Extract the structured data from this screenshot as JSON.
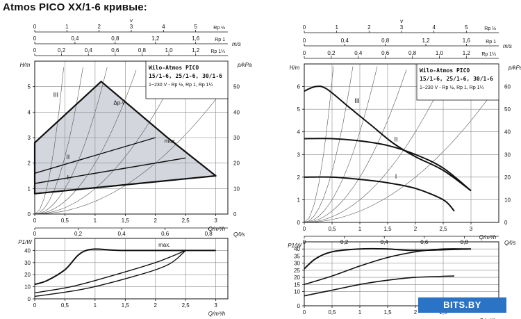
{
  "title": "Atmos PICO XX/1-6 кривые:",
  "watermark": "BITS.BY",
  "colors": {
    "line": "#111111",
    "grid": "#888888",
    "fill": "#d4d6de",
    "badge": "#2a73c5"
  },
  "chart_data": [
    {
      "id": "left-hq",
      "type": "area",
      "info_box": [
        "Wilo-Atmos PICO",
        "15/1-6, 25/1-6, 30/1-6",
        "1~230 V - Rp ½, Rp 1, Rp 1¼"
      ],
      "ylabel": "H/m",
      "ylabel_right": "p/kPa",
      "xlabel": "Q/m³/h",
      "xlabel2": "Q/l/s",
      "xlim": [
        0,
        3.2
      ],
      "ylim": [
        0,
        6
      ],
      "ylim_right": [
        0,
        60
      ],
      "y_ticks": [
        0,
        1,
        2,
        3,
        4,
        5
      ],
      "y_right_ticks": [
        0,
        10,
        20,
        30,
        40,
        50
      ],
      "x_ticks": [
        0,
        0.5,
        1,
        1.5,
        2,
        2.5,
        3
      ],
      "x2_ticks": [
        0,
        0.2,
        0.4,
        0.6,
        0.8
      ],
      "top_scales": [
        {
          "label": "v",
          "unit": "",
          "factor": 1.0,
          "ticks": [
            "0",
            "1",
            "2",
            "3",
            "4",
            "5"
          ],
          "tick_values": [
            0,
            1,
            2,
            3,
            4,
            5
          ],
          "tag": "Rp ½"
        },
        {
          "label": "",
          "unit": "m/s",
          "factor": 0.55,
          "ticks": [
            "0",
            "0,4",
            "0,8",
            "1,2",
            "1,6"
          ],
          "tick_values": [
            0,
            0.4,
            0.8,
            1.2,
            1.6
          ],
          "tag": "Rp 1"
        },
        {
          "label": "",
          "unit": "",
          "factor": 0.36,
          "ticks": [
            "0",
            "0,2",
            "0,4",
            "0,6",
            "0,8",
            "1,0",
            "1,2"
          ],
          "tick_values": [
            0,
            0.2,
            0.4,
            0.6,
            0.8,
            1.0,
            1.2
          ],
          "tag": "Rp 1¼"
        }
      ],
      "envelope": [
        [
          0,
          2.8
        ],
        [
          0,
          0.8
        ],
        [
          3,
          1.5
        ],
        [
          2.2,
          3.0
        ],
        [
          1.1,
          5.2
        ]
      ],
      "series": [
        {
          "name": "I",
          "points": [
            [
              0,
              1.2
            ],
            [
              2.5,
              2.2
            ]
          ]
        },
        {
          "name": "II",
          "points": [
            [
              0,
              1.6
            ],
            [
              2.0,
              3.0
            ]
          ]
        },
        {
          "name": "III",
          "points": [
            [
              0,
              2.8
            ],
            [
              1.1,
              5.2
            ]
          ]
        }
      ],
      "annotations": [
        {
          "text": "Δp-v",
          "at": [
            1.4,
            4.3
          ]
        },
        {
          "text": "max.",
          "at": [
            2.25,
            2.8
          ]
        }
      ],
      "system_curves": [
        0.5,
        1.0,
        2.0,
        4.0,
        9.0,
        25.0
      ]
    },
    {
      "id": "left-power",
      "type": "line",
      "ylabel": "P1/W",
      "xlabel": "Q/m³/h",
      "xlim": [
        0,
        3.2
      ],
      "ylim": [
        0,
        50
      ],
      "y_ticks": [
        0,
        10,
        20,
        30,
        40
      ],
      "x_ticks": [
        0,
        0.5,
        1,
        1.5,
        2,
        2.5,
        3
      ],
      "series": [
        {
          "name": "",
          "points": [
            [
              0,
              12
            ],
            [
              0.2,
              15
            ],
            [
              0.5,
              24
            ],
            [
              0.85,
              40
            ],
            [
              1.5,
              40
            ],
            [
              3,
              40
            ]
          ]
        },
        {
          "name": "",
          "points": [
            [
              0,
              5
            ],
            [
              0.6,
              10
            ],
            [
              1.2,
              18
            ],
            [
              2.0,
              30
            ],
            [
              2.5,
              40
            ]
          ]
        },
        {
          "name": "",
          "points": [
            [
              0,
              2
            ],
            [
              0.8,
              8
            ],
            [
              1.6,
              18
            ],
            [
              2.2,
              28
            ],
            [
              2.5,
              40
            ]
          ]
        }
      ],
      "annotations": [
        {
          "text": "max.",
          "at": [
            2.15,
            43
          ]
        }
      ]
    },
    {
      "id": "right-hq",
      "type": "line",
      "info_box": [
        "Wilo-Atmos PICO",
        "15/1-6, 25/1-6, 30/1-6",
        "1~230 V - Rp ½, Rp 1, Rp 1¼"
      ],
      "ylabel": "H/m",
      "ylabel_right": "p/kPa",
      "xlabel": "Q/m³/h",
      "xlabel2": "Q/l/s",
      "xlim": [
        0,
        3.5
      ],
      "ylim": [
        0,
        7
      ],
      "ylim_right": [
        0,
        70
      ],
      "y_ticks": [
        0,
        1,
        2,
        3,
        4,
        5,
        6
      ],
      "y_right_ticks": [
        0,
        10,
        20,
        30,
        40,
        50,
        60
      ],
      "x_ticks": [
        0,
        0.5,
        1,
        1.5,
        2,
        2.5,
        3
      ],
      "x2_ticks": [
        0,
        0.2,
        0.4,
        0.6,
        0.8
      ],
      "top_scales": [
        {
          "label": "v",
          "unit": "",
          "factor": 1.0,
          "ticks": [
            "0",
            "1",
            "2",
            "3",
            "4",
            "5"
          ],
          "tick_values": [
            0,
            1,
            2,
            3,
            4,
            5
          ],
          "tag": "Rp ½"
        },
        {
          "label": "",
          "unit": "m/s",
          "factor": 0.55,
          "ticks": [
            "0",
            "0,4",
            "0,8",
            "1,2",
            "1,6"
          ],
          "tick_values": [
            0,
            0.4,
            0.8,
            1.2,
            1.6
          ],
          "tag": "Rp 1"
        },
        {
          "label": "",
          "unit": "",
          "factor": 0.36,
          "ticks": [
            "0",
            "0,2",
            "0,4",
            "0,6",
            "0,8",
            "1,0",
            "1,2"
          ],
          "tick_values": [
            0,
            0.2,
            0.4,
            0.6,
            0.8,
            1.0,
            1.2
          ],
          "tag": "Rp 1¼"
        }
      ],
      "series": [
        {
          "name": "I",
          "points": [
            [
              0,
              2.0
            ],
            [
              0.5,
              2.0
            ],
            [
              1.0,
              1.9
            ],
            [
              1.5,
              1.75
            ],
            [
              2.0,
              1.5
            ],
            [
              2.5,
              1.0
            ],
            [
              2.7,
              0.5
            ]
          ]
        },
        {
          "name": "II",
          "points": [
            [
              0,
              3.7
            ],
            [
              0.5,
              3.7
            ],
            [
              1.0,
              3.6
            ],
            [
              1.5,
              3.4
            ],
            [
              2.0,
              3.0
            ],
            [
              2.5,
              2.4
            ],
            [
              3.0,
              1.4
            ]
          ]
        },
        {
          "name": "III",
          "points": [
            [
              0,
              5.8
            ],
            [
              0.2,
              6.0
            ],
            [
              0.4,
              5.9
            ],
            [
              0.8,
              5.1
            ],
            [
              1.2,
              4.3
            ],
            [
              1.6,
              3.5
            ],
            [
              2.0,
              2.9
            ],
            [
              2.5,
              2.3
            ],
            [
              3.0,
              1.4
            ]
          ]
        }
      ],
      "system_curves": [
        0.5,
        1.0,
        2.0,
        4.0,
        9.0,
        25.0
      ]
    },
    {
      "id": "right-power",
      "type": "line",
      "ylabel": "P1/W",
      "xlabel": "Q/m³/h",
      "xlim": [
        0,
        3.5
      ],
      "ylim": [
        0,
        45
      ],
      "y_ticks": [
        0,
        10,
        15,
        20,
        25,
        30,
        35,
        40
      ],
      "x_ticks": [
        0,
        0.5,
        1,
        1.5,
        2,
        2.5
      ],
      "series": [
        {
          "name": "",
          "points": [
            [
              0,
              26
            ],
            [
              0.2,
              33
            ],
            [
              0.5,
              38
            ],
            [
              1.0,
              40
            ],
            [
              1.5,
              40
            ],
            [
              2.0,
              39
            ],
            [
              3.0,
              40
            ]
          ]
        },
        {
          "name": "",
          "points": [
            [
              0,
              15
            ],
            [
              0.5,
              21
            ],
            [
              1.0,
              28
            ],
            [
              1.5,
              34
            ],
            [
              2.0,
              38
            ],
            [
              2.5,
              40
            ],
            [
              3.0,
              40
            ]
          ]
        },
        {
          "name": "",
          "points": [
            [
              0,
              7
            ],
            [
              0.5,
              11
            ],
            [
              1.0,
              15
            ],
            [
              1.5,
              18
            ],
            [
              2.0,
              20
            ],
            [
              2.7,
              21
            ]
          ]
        }
      ]
    }
  ]
}
